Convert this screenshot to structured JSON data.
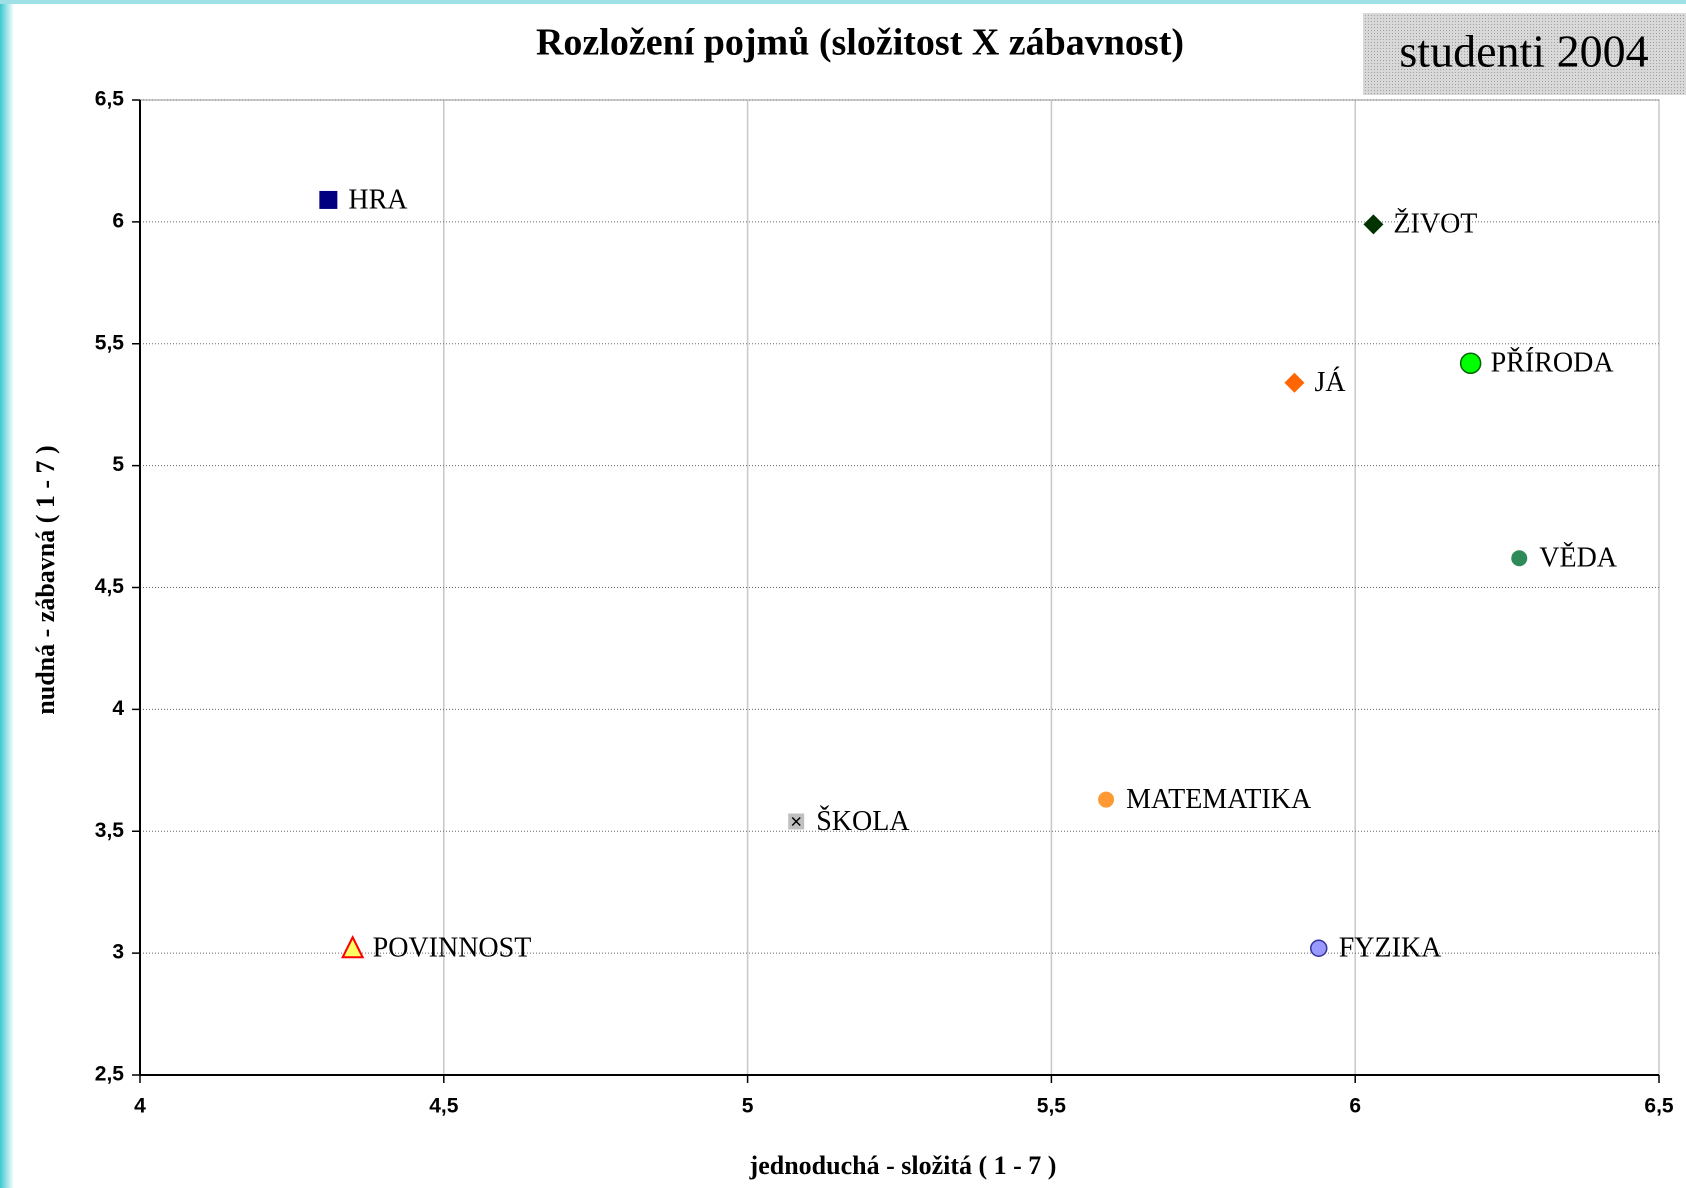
{
  "chart_data": {
    "type": "scatter",
    "title": "Rozložení pojmů (složitost X zábavnost)",
    "annotation": "studenti 2004",
    "xlabel": "jednoduchá - složitá ( 1 - 7 )",
    "ylabel": "nudná - zábavná ( 1 - 7 )",
    "xlim": [
      4,
      6.5
    ],
    "ylim": [
      2.5,
      6.5
    ],
    "xticks": [
      4,
      {
        "value": 4.5,
        "label": "4,5"
      },
      5,
      {
        "value": 5.5,
        "label": "5,5"
      },
      6,
      {
        "value": 6.5,
        "label": "6,5"
      }
    ],
    "yticks": [
      {
        "value": 2.5,
        "label": "2,5"
      },
      3,
      {
        "value": 3.5,
        "label": "3,5"
      },
      4,
      {
        "value": 4.5,
        "label": "4,5"
      },
      5,
      {
        "value": 5.5,
        "label": "5,5"
      },
      6,
      {
        "value": 6.5,
        "label": "6,5"
      }
    ],
    "grid": true,
    "series": [
      {
        "name": "HRA",
        "color": "#000080",
        "marker": "square",
        "x": [
          4.31
        ],
        "values": [
          6.09
        ]
      },
      {
        "name": "ŽIVOT",
        "color": "#003300",
        "marker": "diamond",
        "x": [
          6.03
        ],
        "values": [
          5.99
        ]
      },
      {
        "name": "PŘÍRODA",
        "color": "#00ff00",
        "marker": "circle",
        "x": [
          6.19
        ],
        "values": [
          5.42
        ]
      },
      {
        "name": "JÁ",
        "color": "#ff6600",
        "marker": "diamond",
        "x": [
          5.9
        ],
        "values": [
          5.34
        ]
      },
      {
        "name": "VĚDA",
        "color": "#2e8b57",
        "marker": "circle",
        "x": [
          6.27
        ],
        "values": [
          4.62
        ]
      },
      {
        "name": "MATEMATIKA",
        "color": "#ff9933",
        "marker": "circle",
        "x": [
          5.59
        ],
        "values": [
          3.63
        ]
      },
      {
        "name": "ŠKOLA",
        "color": "#c0c0c0",
        "marker": "cross-square",
        "x": [
          5.08
        ],
        "values": [
          3.54
        ]
      },
      {
        "name": "POVINNOST",
        "color": "#ffff66",
        "marker": "triangle",
        "x": [
          4.35
        ],
        "values": [
          3.02
        ]
      },
      {
        "name": "FYZIKA",
        "color": "#9999ff",
        "marker": "circle",
        "x": [
          5.94
        ],
        "values": [
          3.02
        ]
      }
    ]
  }
}
